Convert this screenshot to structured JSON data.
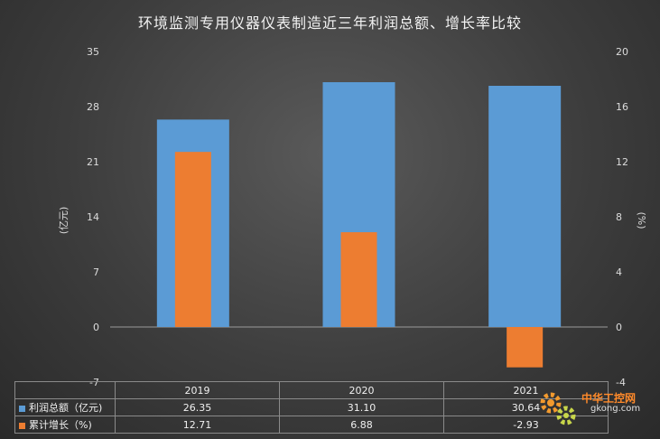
{
  "chart_data": {
    "type": "bar",
    "title": "环境监测专用仪器仪表制造近三年利润总额、增长率比较",
    "categories": [
      "2019",
      "2020",
      "2021"
    ],
    "series": [
      {
        "name": "利润总额（亿元)",
        "axis": "left",
        "values": [
          26.35,
          31.1,
          30.64
        ],
        "display": [
          "26.35",
          "31.10",
          "30.64"
        ],
        "color": "#5b9bd5"
      },
      {
        "name": "累计增长（%)",
        "axis": "right",
        "values": [
          12.71,
          6.88,
          -2.93
        ],
        "display": [
          "12.71",
          "6.88",
          "-2.93"
        ],
        "color": "#ed7d31"
      }
    ],
    "y_left": {
      "label": "(亿元)",
      "min": -7,
      "max": 35,
      "ticks": [
        "-7",
        "0",
        "7",
        "14",
        "21",
        "28",
        "35"
      ]
    },
    "y_right": {
      "label": "(%)",
      "min": -4,
      "max": 20,
      "ticks": [
        "-4",
        "0",
        "4",
        "8",
        "12",
        "16",
        "20"
      ]
    },
    "grid": false,
    "legend": "data-table"
  },
  "watermark": {
    "top": "中华工控网",
    "bottom": "gkong.com"
  }
}
